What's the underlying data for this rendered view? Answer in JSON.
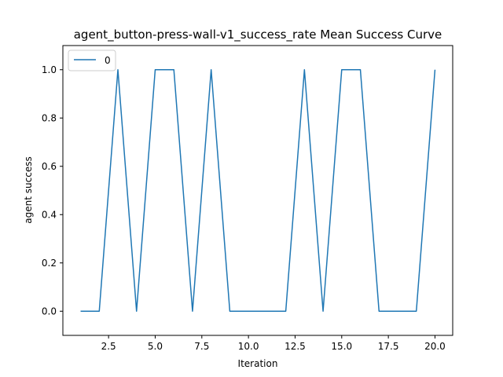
{
  "chart_data": {
    "type": "line",
    "title": "agent_button-press-wall-v1_success_rate Mean Success Curve",
    "xlabel": "Iteration",
    "ylabel": "agent success",
    "xlim": [
      0.05,
      20.95
    ],
    "ylim": [
      -0.1,
      1.1
    ],
    "xticks": [
      2.5,
      5.0,
      7.5,
      10.0,
      12.5,
      15.0,
      17.5,
      20.0
    ],
    "xtick_labels": [
      "2.5",
      "5.0",
      "7.5",
      "10.0",
      "12.5",
      "15.0",
      "17.5",
      "20.0"
    ],
    "yticks": [
      0.0,
      0.2,
      0.4,
      0.6,
      0.8,
      1.0
    ],
    "ytick_labels": [
      "0.0",
      "0.2",
      "0.4",
      "0.6",
      "0.8",
      "1.0"
    ],
    "grid": false,
    "legend_position": "upper-left",
    "series": [
      {
        "name": "0",
        "color": "#1f77b4",
        "x": [
          1,
          2,
          3,
          4,
          5,
          6,
          7,
          8,
          9,
          10,
          11,
          12,
          13,
          14,
          15,
          16,
          17,
          18,
          19,
          20
        ],
        "y": [
          0,
          0,
          1,
          0,
          1,
          1,
          0,
          1,
          0,
          0,
          0,
          0,
          1,
          0,
          1,
          1,
          0,
          0,
          0,
          1
        ]
      }
    ]
  }
}
